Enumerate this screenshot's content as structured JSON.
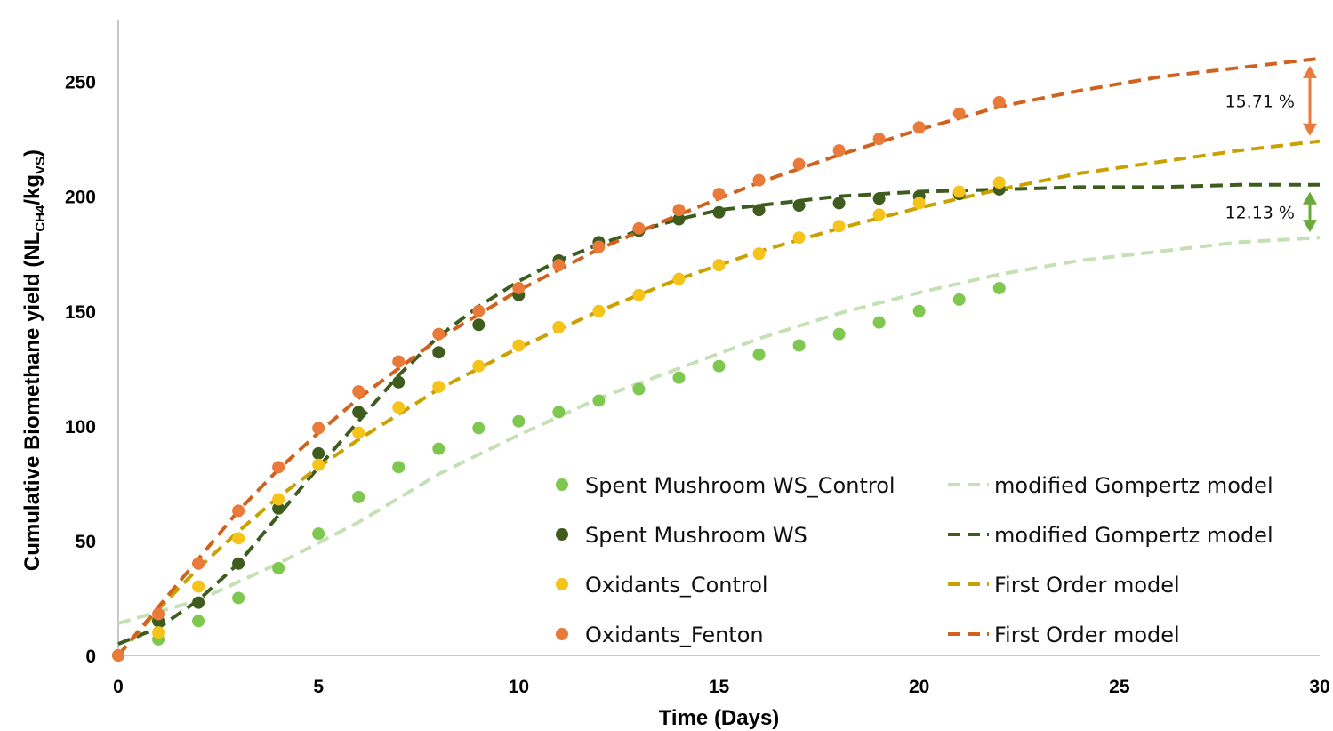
{
  "chart_data": {
    "type": "scatter",
    "xlabel": "Time (Days)",
    "ylabel_main": "Cumulative Biomethane yield (NL",
    "ylabel_sub1": "CH4",
    "ylabel_mid": "/kg",
    "ylabel_sub2": "VS",
    "ylabel_end": ")",
    "xlim": [
      0,
      30
    ],
    "ylim": [
      0,
      270
    ],
    "xticks": [
      0,
      5,
      10,
      15,
      20,
      25,
      30
    ],
    "yticks": [
      0,
      50,
      100,
      150,
      200,
      250
    ],
    "grid": false,
    "legend_position": "bottom-right",
    "series": [
      {
        "name": "Spent Mushroom WS_Control",
        "kind": "points",
        "color": "#7ec850",
        "x": [
          1,
          2,
          3,
          4,
          5,
          6,
          7,
          8,
          9,
          10,
          11,
          12,
          13,
          14,
          15,
          16,
          17,
          18,
          19,
          20,
          21,
          22
        ],
        "y": [
          7,
          15,
          25,
          38,
          53,
          69,
          82,
          90,
          99,
          102,
          106,
          111,
          116,
          121,
          126,
          131,
          135,
          140,
          145,
          150,
          155,
          160
        ]
      },
      {
        "name": "Spent Mushroom WS",
        "kind": "points",
        "color": "#3d5c1e",
        "x": [
          0,
          1,
          2,
          3,
          4,
          5,
          6,
          7,
          8,
          9,
          10,
          11,
          12,
          13,
          14,
          15,
          16,
          17,
          18,
          19,
          20,
          21,
          22
        ],
        "y": [
          0,
          15,
          23,
          40,
          64,
          88,
          106,
          119,
          132,
          144,
          157,
          172,
          180,
          185,
          190,
          193,
          194,
          196,
          197,
          199,
          200,
          201,
          203
        ]
      },
      {
        "name": "Oxidants_Control",
        "kind": "points",
        "color": "#f6c31b",
        "x": [
          0,
          1,
          2,
          3,
          4,
          5,
          6,
          7,
          8,
          9,
          10,
          11,
          12,
          13,
          14,
          15,
          16,
          17,
          18,
          19,
          20,
          21,
          22
        ],
        "y": [
          0,
          10,
          30,
          51,
          68,
          83,
          97,
          108,
          117,
          126,
          135,
          143,
          150,
          157,
          164,
          170,
          175,
          182,
          187,
          192,
          197,
          202,
          206
        ]
      },
      {
        "name": "Oxidants_Fenton",
        "kind": "points",
        "color": "#e97a3a",
        "x": [
          0,
          1,
          2,
          3,
          4,
          5,
          6,
          7,
          8,
          9,
          10,
          11,
          12,
          13,
          14,
          15,
          16,
          17,
          18,
          19,
          20,
          21,
          22
        ],
        "y": [
          0,
          18,
          40,
          63,
          82,
          99,
          115,
          128,
          140,
          150,
          160,
          170,
          178,
          186,
          194,
          201,
          207,
          214,
          220,
          225,
          230,
          236,
          241
        ]
      },
      {
        "name": "modified Gompertz model",
        "kind": "fit",
        "color": "#c5e0b4",
        "x": [
          0,
          2,
          4,
          6,
          8,
          10,
          12,
          14,
          16,
          18,
          20,
          22,
          24,
          26,
          28,
          30
        ],
        "y": [
          14,
          24,
          40,
          58,
          79,
          96,
          112,
          125,
          138,
          149,
          158,
          166,
          172,
          176,
          180,
          182
        ]
      },
      {
        "name": "modified Gompertz model",
        "kind": "fit",
        "color": "#3d5c1e",
        "x": [
          0,
          1,
          2,
          3,
          4,
          5,
          6,
          7,
          8,
          9,
          10,
          11,
          12,
          13,
          14,
          15,
          16,
          18,
          20,
          22,
          24,
          26,
          28,
          30
        ],
        "y": [
          5,
          12,
          24,
          40,
          61,
          82,
          102,
          122,
          139,
          152,
          163,
          172,
          179,
          185,
          190,
          194,
          196,
          200,
          202,
          203,
          204,
          204,
          205,
          205
        ]
      },
      {
        "name": "First Order model",
        "kind": "fit",
        "color": "#c9a100",
        "x": [
          0,
          1,
          2,
          3,
          4,
          5,
          6,
          8,
          10,
          12,
          14,
          16,
          18,
          20,
          22,
          24,
          26,
          28,
          30
        ],
        "y": [
          0,
          20,
          38,
          54,
          69,
          82,
          94,
          116,
          134,
          150,
          164,
          176,
          186,
          195,
          203,
          210,
          215,
          220,
          224
        ]
      },
      {
        "name": "First Order model",
        "kind": "fit",
        "color": "#d0621f",
        "x": [
          0,
          1,
          2,
          3,
          4,
          5,
          6,
          8,
          10,
          12,
          14,
          16,
          18,
          20,
          22,
          24,
          26,
          28,
          30
        ],
        "y": [
          0,
          21,
          42,
          63,
          81,
          97,
          112,
          138,
          159,
          177,
          192,
          206,
          218,
          229,
          239,
          246,
          252,
          256,
          260
        ]
      }
    ],
    "annotations": [
      {
        "text": "15.71 %",
        "color": "#e97a3a",
        "x": 30,
        "y_from": 224,
        "y_to": 260
      },
      {
        "text": "12.13 %",
        "color": "#6aaa3a",
        "x": 30,
        "y_from": 182,
        "y_to": 205
      }
    ]
  }
}
